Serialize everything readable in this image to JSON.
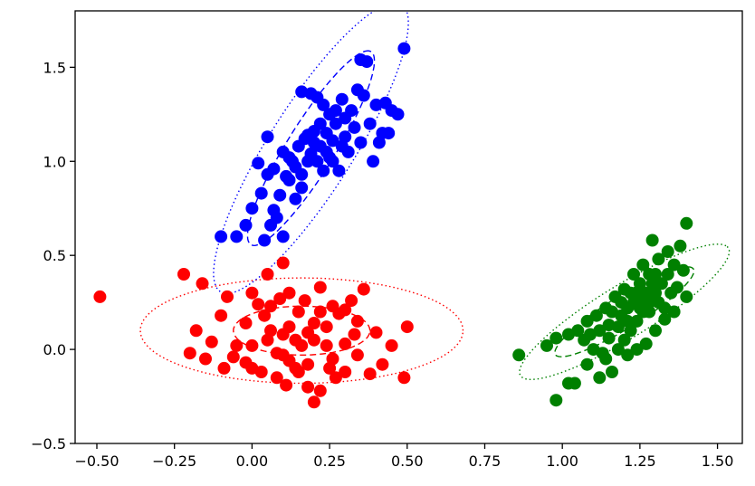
{
  "chart_data": {
    "type": "scatter",
    "title": "",
    "xlabel": "",
    "ylabel": "",
    "xlim": [
      -0.57,
      1.58
    ],
    "ylim": [
      -0.5,
      1.8
    ],
    "xticks": [
      -0.5,
      -0.25,
      0.0,
      0.25,
      0.5,
      0.75,
      1.0,
      1.25,
      1.5
    ],
    "xtick_labels": [
      "−0.50",
      "−0.25",
      "0.00",
      "0.25",
      "0.50",
      "0.75",
      "1.00",
      "1.25",
      "1.50"
    ],
    "yticks": [
      -0.5,
      0.0,
      0.5,
      1.0,
      1.5
    ],
    "ytick_labels": [
      "−0.5",
      "0.0",
      "0.5",
      "1.0",
      "1.5"
    ],
    "grid": false,
    "legend": "none",
    "series": [
      {
        "color": "#ff0000",
        "points": [
          [
            -0.49,
            0.28
          ],
          [
            -0.22,
            0.4
          ],
          [
            -0.16,
            0.35
          ],
          [
            -0.1,
            0.18
          ],
          [
            -0.13,
            0.04
          ],
          [
            -0.15,
            -0.05
          ],
          [
            -0.09,
            -0.1
          ],
          [
            -0.02,
            0.14
          ],
          [
            0.0,
            0.3
          ],
          [
            0.02,
            0.24
          ],
          [
            0.05,
            0.4
          ],
          [
            0.1,
            0.46
          ],
          [
            0.12,
            0.3
          ],
          [
            0.15,
            0.2
          ],
          [
            0.06,
            0.1
          ],
          [
            0.0,
            0.02
          ],
          [
            0.08,
            -0.02
          ],
          [
            0.12,
            -0.06
          ],
          [
            0.03,
            -0.12
          ],
          [
            0.08,
            -0.15
          ],
          [
            0.18,
            0.09
          ],
          [
            0.22,
            0.33
          ],
          [
            0.26,
            0.23
          ],
          [
            0.3,
            0.03
          ],
          [
            0.34,
            0.15
          ],
          [
            0.4,
            0.09
          ],
          [
            0.45,
            0.02
          ],
          [
            0.5,
            0.12
          ],
          [
            0.49,
            -0.15
          ],
          [
            0.42,
            -0.08
          ],
          [
            0.38,
            -0.13
          ],
          [
            0.34,
            -0.03
          ],
          [
            0.3,
            -0.12
          ],
          [
            0.25,
            -0.1
          ],
          [
            0.22,
            -0.22
          ],
          [
            0.2,
            -0.28
          ],
          [
            0.18,
            -0.2
          ],
          [
            0.15,
            -0.12
          ],
          [
            0.1,
            -0.03
          ],
          [
            0.14,
            0.05
          ],
          [
            -0.2,
            -0.02
          ],
          [
            -0.18,
            0.1
          ],
          [
            -0.05,
            0.02
          ],
          [
            -0.08,
            0.28
          ],
          [
            0.04,
            0.18
          ],
          [
            0.24,
            0.12
          ],
          [
            0.28,
            0.19
          ],
          [
            0.32,
            0.26
          ],
          [
            0.36,
            0.32
          ],
          [
            0.2,
            0.14
          ],
          [
            0.16,
            0.02
          ],
          [
            0.1,
            0.08
          ],
          [
            0.06,
            0.23
          ],
          [
            -0.02,
            -0.07
          ],
          [
            0.14,
            -0.1
          ],
          [
            0.26,
            -0.05
          ],
          [
            0.18,
            -0.08
          ],
          [
            0.22,
            0.2
          ],
          [
            0.12,
            0.12
          ],
          [
            0.0,
            -0.1
          ],
          [
            0.24,
            0.02
          ],
          [
            0.27,
            -0.15
          ],
          [
            0.33,
            0.08
          ],
          [
            0.09,
            0.27
          ],
          [
            0.17,
            0.26
          ],
          [
            -0.06,
            -0.04
          ],
          [
            0.2,
            0.05
          ],
          [
            0.11,
            -0.19
          ],
          [
            0.3,
            0.21
          ],
          [
            0.05,
            0.05
          ]
        ]
      },
      {
        "color": "#0000ff",
        "points": [
          [
            -0.1,
            0.6
          ],
          [
            -0.05,
            0.6
          ],
          [
            -0.02,
            0.66
          ],
          [
            0.0,
            0.75
          ],
          [
            0.03,
            0.83
          ],
          [
            0.02,
            0.99
          ],
          [
            0.05,
            1.13
          ],
          [
            0.07,
            0.96
          ],
          [
            0.1,
            1.05
          ],
          [
            0.12,
            0.9
          ],
          [
            0.14,
            0.8
          ],
          [
            0.16,
            0.86
          ],
          [
            0.18,
            1.0
          ],
          [
            0.2,
            1.1
          ],
          [
            0.22,
            1.2
          ],
          [
            0.24,
            1.05
          ],
          [
            0.26,
            1.0
          ],
          [
            0.28,
            0.95
          ],
          [
            0.3,
            1.13
          ],
          [
            0.32,
            1.27
          ],
          [
            0.34,
            1.38
          ],
          [
            0.36,
            1.35
          ],
          [
            0.38,
            1.2
          ],
          [
            0.4,
            1.3
          ],
          [
            0.43,
            1.31
          ],
          [
            0.45,
            1.27
          ],
          [
            0.42,
            1.15
          ],
          [
            0.35,
            1.54
          ],
          [
            0.37,
            1.53
          ],
          [
            0.49,
            1.6
          ],
          [
            0.29,
            1.33
          ],
          [
            0.25,
            1.25
          ],
          [
            0.23,
            1.3
          ],
          [
            0.19,
            1.36
          ],
          [
            0.16,
            1.37
          ],
          [
            0.21,
            1.34
          ],
          [
            0.18,
            1.14
          ],
          [
            0.15,
            1.08
          ],
          [
            0.13,
            1.0
          ],
          [
            0.11,
            0.92
          ],
          [
            0.09,
            0.82
          ],
          [
            0.07,
            0.74
          ],
          [
            0.06,
            0.66
          ],
          [
            0.04,
            0.58
          ],
          [
            0.1,
            0.6
          ],
          [
            0.08,
            0.7
          ],
          [
            0.24,
            1.15
          ],
          [
            0.27,
            1.2
          ],
          [
            0.31,
            1.05
          ],
          [
            0.33,
            1.18
          ],
          [
            0.2,
            1.16
          ],
          [
            0.17,
            1.12
          ],
          [
            0.22,
            1.08
          ],
          [
            0.26,
            1.11
          ],
          [
            0.29,
            1.08
          ],
          [
            0.14,
            0.97
          ],
          [
            0.12,
            1.02
          ],
          [
            0.19,
            1.04
          ],
          [
            0.35,
            1.1
          ],
          [
            0.39,
            1.0
          ],
          [
            0.41,
            1.1
          ],
          [
            0.44,
            1.15
          ],
          [
            0.47,
            1.25
          ],
          [
            0.21,
            1.0
          ],
          [
            0.16,
            0.93
          ],
          [
            0.23,
            0.95
          ],
          [
            0.27,
            1.27
          ],
          [
            0.3,
            1.23
          ],
          [
            0.25,
            1.02
          ],
          [
            0.05,
            0.93
          ]
        ]
      },
      {
        "color": "#008000",
        "points": [
          [
            0.86,
            -0.03
          ],
          [
            0.98,
            -0.27
          ],
          [
            1.02,
            -0.18
          ],
          [
            1.04,
            -0.18
          ],
          [
            1.08,
            -0.08
          ],
          [
            1.12,
            -0.15
          ],
          [
            1.14,
            -0.05
          ],
          [
            1.16,
            -0.12
          ],
          [
            1.18,
            0.0
          ],
          [
            1.2,
            0.05
          ],
          [
            1.22,
            0.1
          ],
          [
            1.24,
            0.15
          ],
          [
            1.26,
            0.2
          ],
          [
            1.28,
            0.25
          ],
          [
            1.3,
            0.3
          ],
          [
            1.32,
            0.35
          ],
          [
            1.34,
            0.4
          ],
          [
            1.36,
            0.45
          ],
          [
            1.4,
            0.67
          ],
          [
            1.38,
            0.55
          ],
          [
            1.39,
            0.42
          ],
          [
            1.4,
            0.28
          ],
          [
            1.37,
            0.33
          ],
          [
            1.33,
            0.16
          ],
          [
            1.3,
            0.1
          ],
          [
            1.27,
            0.03
          ],
          [
            1.24,
            0.0
          ],
          [
            1.21,
            -0.03
          ],
          [
            1.18,
            0.12
          ],
          [
            1.15,
            0.06
          ],
          [
            1.12,
            0.1
          ],
          [
            1.1,
            0.0
          ],
          [
            1.07,
            0.05
          ],
          [
            1.05,
            0.1
          ],
          [
            1.02,
            0.08
          ],
          [
            0.98,
            0.06
          ],
          [
            0.95,
            0.02
          ],
          [
            1.16,
            0.2
          ],
          [
            1.19,
            0.25
          ],
          [
            1.22,
            0.3
          ],
          [
            1.25,
            0.35
          ],
          [
            1.28,
            0.4
          ],
          [
            1.31,
            0.48
          ],
          [
            1.34,
            0.52
          ],
          [
            1.29,
            0.58
          ],
          [
            1.26,
            0.45
          ],
          [
            1.23,
            0.4
          ],
          [
            1.2,
            0.32
          ],
          [
            1.17,
            0.28
          ],
          [
            1.14,
            0.22
          ],
          [
            1.11,
            0.18
          ],
          [
            1.08,
            0.15
          ],
          [
            1.25,
            0.22
          ],
          [
            1.27,
            0.3
          ],
          [
            1.29,
            0.35
          ],
          [
            1.31,
            0.25
          ],
          [
            1.33,
            0.22
          ],
          [
            1.35,
            0.3
          ],
          [
            1.21,
            0.15
          ],
          [
            1.19,
            0.18
          ],
          [
            1.23,
            0.25
          ],
          [
            1.26,
            0.28
          ],
          [
            1.28,
            0.2
          ],
          [
            1.24,
            0.3
          ],
          [
            1.21,
            0.22
          ],
          [
            1.15,
            0.13
          ],
          [
            1.13,
            -0.02
          ],
          [
            1.09,
            0.08
          ],
          [
            1.3,
            0.4
          ],
          [
            1.36,
            0.2
          ]
        ]
      }
    ],
    "ellipses": [
      {
        "color": "#ff0000",
        "center": [
          0.16,
          0.1
        ],
        "semi_major": 0.22,
        "semi_minor": 0.13,
        "angle_deg": 0,
        "style": "dashed"
      },
      {
        "color": "#ff0000",
        "center": [
          0.16,
          0.1
        ],
        "semi_major": 0.52,
        "semi_minor": 0.28,
        "angle_deg": 0,
        "style": "dotted"
      },
      {
        "color": "#0000ff",
        "center": [
          0.19,
          1.07
        ],
        "semi_major": 0.55,
        "semi_minor": 0.085,
        "angle_deg": 70,
        "style": "dashed"
      },
      {
        "color": "#0000ff",
        "center": [
          0.19,
          1.07
        ],
        "semi_major": 0.82,
        "semi_minor": 0.15,
        "angle_deg": 70,
        "style": "dotted"
      },
      {
        "color": "#008000",
        "center": [
          1.2,
          0.2
        ],
        "semi_major": 0.32,
        "semi_minor": 0.07,
        "angle_deg": 47,
        "style": "dashed"
      },
      {
        "color": "#008000",
        "center": [
          1.2,
          0.2
        ],
        "semi_major": 0.48,
        "semi_minor": 0.115,
        "angle_deg": 47,
        "style": "dotted"
      }
    ]
  }
}
